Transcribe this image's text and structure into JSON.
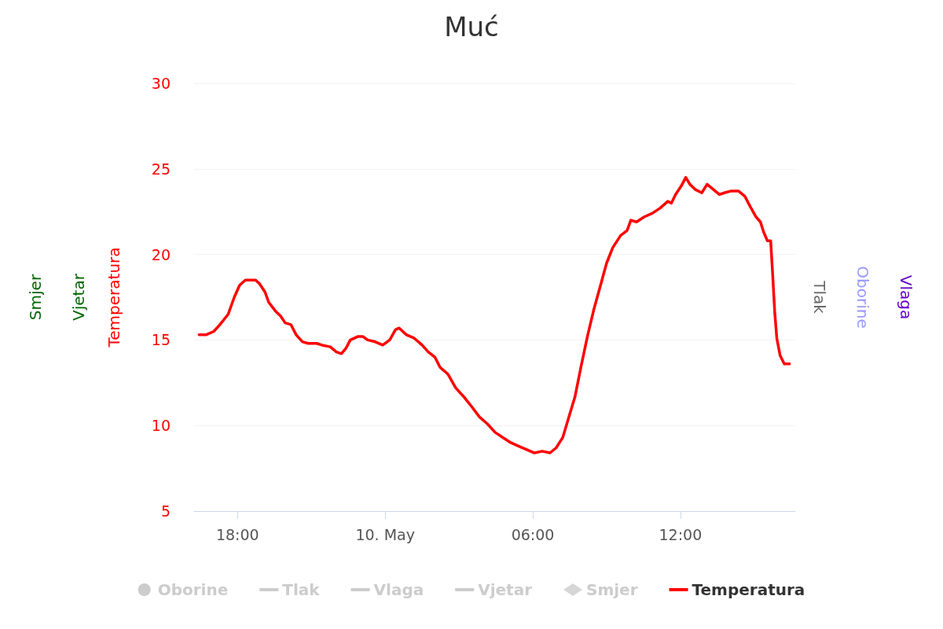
{
  "chart_data": {
    "type": "line",
    "title": "Muć",
    "ylabel": "Temperatura",
    "annotations": [
      "Oborine",
      "Tlak",
      "Vlaga",
      "Vjetar",
      "Smjer"
    ],
    "xlim": [
      "--05-09T16:14",
      "--05-10T16:40"
    ],
    "xticks": [
      {
        "value": "--05-09T18:00",
        "label": "18:00"
      },
      {
        "value": "--05-10T00:00",
        "label": "10. May"
      },
      {
        "value": "--05-10T06:00",
        "label": "06:00"
      },
      {
        "value": "--05-10T12:00",
        "label": "12:00"
      }
    ],
    "ylim": [
      5,
      30
    ],
    "yticks": [
      5,
      10,
      15,
      20,
      25,
      30
    ],
    "grid": "y",
    "legend": "bottom",
    "marker": "none",
    "line_style": "solid",
    "series": [
      {
        "name": "Oborine",
        "type": "bar",
        "color": "#cccccc"
      },
      {
        "name": "Tlak",
        "color": "#cccccc"
      },
      {
        "name": "Vlaga",
        "color": "#cccccc"
      },
      {
        "name": "Vjetar",
        "color": "#cccccc"
      },
      {
        "name": "Smjer",
        "type": "scatter",
        "color": "#cccccc"
      },
      {
        "name": "Temperatura",
        "color": "#ff0000",
        "x": [
          "--05-09T16:26",
          "--05-09T16:43",
          "--05-09T17:02",
          "--05-09T17:17",
          "--05-09T17:37",
          "--05-09T17:52",
          "--05-09T18:05",
          "--05-09T18:19",
          "--05-09T18:31",
          "--05-09T18:44",
          "--05-09T18:53",
          "--05-09T19:07",
          "--05-09T19:16",
          "--05-09T19:32",
          "--05-09T19:45",
          "--05-09T19:56",
          "--05-09T20:10",
          "--05-09T20:23",
          "--05-09T20:38",
          "--05-09T20:52",
          "--05-09T21:13",
          "--05-09T21:26",
          "--05-09T21:46",
          "--05-09T22:01",
          "--05-09T22:13",
          "--05-09T22:24",
          "--05-09T22:35",
          "--05-09T22:53",
          "--05-09T23:06",
          "--05-09T23:17",
          "--05-09T23:35",
          "--05-09T23:54",
          "--05-10T00:11",
          "--05-10T00:25",
          "--05-10T00:34",
          "--05-10T00:52",
          "--05-10T01:11",
          "--05-10T01:30",
          "--05-10T01:45",
          "--05-10T02:01",
          "--05-10T02:14",
          "--05-10T02:33",
          "--05-10T02:52",
          "--05-10T03:11",
          "--05-10T03:31",
          "--05-10T03:50",
          "--05-10T04:09",
          "--05-10T04:28",
          "--05-10T04:47",
          "--05-10T05:06",
          "--05-10T05:25",
          "--05-10T05:44",
          "--05-10T06:04",
          "--05-10T06:23",
          "--05-10T06:42",
          "--05-10T06:57",
          "--05-10T07:13",
          "--05-10T07:28",
          "--05-10T07:43",
          "--05-10T07:58",
          "--05-10T08:14",
          "--05-10T08:29",
          "--05-10T08:44",
          "--05-10T09:00",
          "--05-10T09:15",
          "--05-10T09:34",
          "--05-10T09:50",
          "--05-10T09:59",
          "--05-10T10:13",
          "--05-10T10:32",
          "--05-10T10:51",
          "--05-10T11:10",
          "--05-10T11:29",
          "--05-10T11:38",
          "--05-10T11:48",
          "--05-10T12:02",
          "--05-10T12:13",
          "--05-10T12:23",
          "--05-10T12:36",
          "--05-10T12:52",
          "--05-10T13:05",
          "--05-10T13:20",
          "--05-10T13:35",
          "--05-10T13:47",
          "--05-10T14:02",
          "--05-10T14:22",
          "--05-10T14:37",
          "--05-10T14:50",
          "--05-10T15:04",
          "--05-10T15:15",
          "--05-10T15:23",
          "--05-10T15:32",
          "--05-10T15:40",
          "--05-10T15:44",
          "--05-10T15:50",
          "--05-10T15:55",
          "--05-10T16:03",
          "--05-10T16:13",
          "--05-10T16:20",
          "--05-10T16:26"
        ],
        "values": [
          15.3,
          15.3,
          15.5,
          15.9,
          16.5,
          17.5,
          18.2,
          18.5,
          18.5,
          18.5,
          18.3,
          17.8,
          17.2,
          16.7,
          16.4,
          16.0,
          15.9,
          15.3,
          14.9,
          14.8,
          14.8,
          14.7,
          14.6,
          14.3,
          14.2,
          14.5,
          15.0,
          15.2,
          15.2,
          15.0,
          14.9,
          14.7,
          15.0,
          15.6,
          15.7,
          15.3,
          15.1,
          14.7,
          14.3,
          14.0,
          13.4,
          13.0,
          12.2,
          11.7,
          11.1,
          10.5,
          10.1,
          9.6,
          9.3,
          9.0,
          8.8,
          8.6,
          8.4,
          8.5,
          8.4,
          8.7,
          9.3,
          10.5,
          11.7,
          13.5,
          15.3,
          16.8,
          18.1,
          19.5,
          20.4,
          21.1,
          21.4,
          22.0,
          21.9,
          22.2,
          22.4,
          22.7,
          23.1,
          23.0,
          23.5,
          24.0,
          24.5,
          24.1,
          23.8,
          23.6,
          24.1,
          23.8,
          23.5,
          23.6,
          23.7,
          23.7,
          23.4,
          22.8,
          22.2,
          21.9,
          21.3,
          20.8,
          20.8,
          19.2,
          16.6,
          15.1,
          14.1,
          13.6,
          13.6,
          13.6
        ]
      }
    ]
  }
}
